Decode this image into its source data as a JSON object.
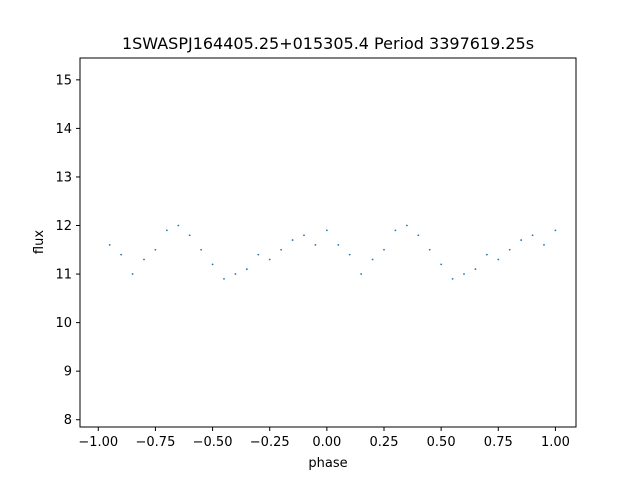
{
  "chart_data": {
    "type": "scatter",
    "title": "1SWASPJ164405.25+015305.4 Period 3397619.25s",
    "xlabel": "phase",
    "ylabel": "flux",
    "xlim": [
      -1.08,
      1.09
    ],
    "ylim": [
      7.85,
      15.45
    ],
    "xticks": [
      -1.0,
      -0.75,
      -0.5,
      -0.25,
      0.0,
      0.25,
      0.5,
      0.75,
      1.0
    ],
    "xtick_labels": [
      "−1.00",
      "−0.75",
      "−0.50",
      "−0.25",
      "0.00",
      "0.25",
      "0.50",
      "0.75",
      "1.00"
    ],
    "yticks": [
      8,
      9,
      10,
      11,
      12,
      13,
      14,
      15
    ],
    "ytick_labels": [
      "8",
      "9",
      "10",
      "11",
      "12",
      "13",
      "14",
      "15"
    ],
    "grid": false,
    "marker_color": "#1f77b4",
    "series": [
      {
        "x": [
          -0.95,
          -0.9,
          -0.85,
          -0.8,
          -0.75,
          -0.7,
          -0.65,
          -0.6,
          -0.55,
          -0.5,
          -0.45,
          -0.4,
          -0.35,
          -0.3,
          -0.25,
          -0.2,
          -0.15,
          -0.1,
          -0.05,
          0.0,
          0.05,
          0.1,
          0.15,
          0.2,
          0.25,
          0.3,
          0.35,
          0.4,
          0.45,
          0.5,
          0.55,
          0.6,
          0.65,
          0.7,
          0.75,
          0.8,
          0.85,
          0.9,
          0.95,
          1.0
        ],
        "y": [
          11.6,
          11.4,
          11.0,
          11.3,
          11.5,
          11.9,
          12.0,
          11.8,
          11.5,
          11.2,
          10.9,
          11.0,
          11.1,
          11.4,
          11.3,
          11.5,
          11.7,
          11.8,
          11.6,
          11.9,
          11.6,
          11.4,
          11.0,
          11.3,
          11.5,
          11.9,
          12.0,
          11.8,
          11.5,
          11.2,
          10.9,
          11.0,
          11.1,
          11.4,
          11.3,
          11.5,
          11.7,
          11.8,
          11.6,
          11.9
        ]
      }
    ]
  }
}
